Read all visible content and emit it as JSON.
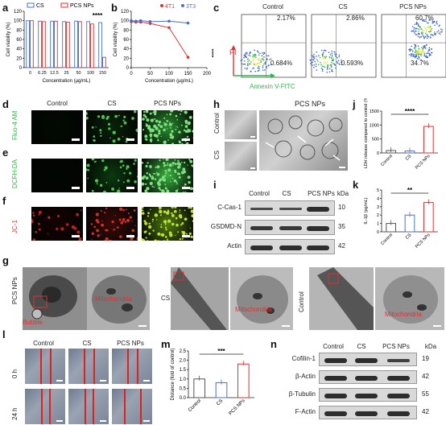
{
  "panels": {
    "a": "a",
    "b": "b",
    "c": "c",
    "d": "d",
    "e": "e",
    "f": "f",
    "g": "g",
    "h": "h",
    "i": "i",
    "j": "j",
    "k": "k",
    "l": "l",
    "m": "m",
    "n": "n"
  },
  "colors": {
    "cs": "#4a6fd1",
    "pcs": "#e03030",
    "green": "#2db84b",
    "red_text": "#e03030"
  },
  "chart_data": [
    {
      "id": "a",
      "type": "bar",
      "categories": [
        "0",
        "6.25",
        "12.5",
        "25",
        "50",
        "100",
        "150"
      ],
      "series": [
        {
          "name": "CS",
          "values": [
            100,
            99,
            99,
            98,
            99,
            98,
            96
          ]
        },
        {
          "name": "PCS NPs",
          "values": [
            100,
            98,
            99,
            97,
            98,
            93,
            22
          ]
        }
      ],
      "xlabel": "Concentration (μg/mL)",
      "ylabel": "Cell viability (%)",
      "ylim": [
        0,
        120
      ],
      "yticks": [
        "0",
        "20",
        "40",
        "60",
        "80",
        "100",
        "120"
      ],
      "annotation": "****"
    },
    {
      "id": "b",
      "type": "line",
      "x": [
        0,
        12.5,
        25,
        50,
        100,
        150
      ],
      "series": [
        {
          "name": "4T1",
          "values": [
            98,
            97,
            97,
            94,
            85,
            22
          ]
        },
        {
          "name": "3T3",
          "values": [
            100,
            99,
            100,
            98,
            99,
            95
          ]
        }
      ],
      "xlabel": "Concentration (μg/mL)",
      "ylabel": "Cell viability (%)",
      "xlim": [
        0,
        200
      ],
      "ylim": [
        0,
        120
      ],
      "xticks": [
        "0",
        "50",
        "100",
        "150",
        "200"
      ],
      "yticks": [
        "0",
        "20",
        "40",
        "60",
        "80",
        "100",
        "120"
      ],
      "annotation": "****"
    },
    {
      "id": "j",
      "type": "bar",
      "categories": [
        "Control",
        "CS",
        "PCS NPs"
      ],
      "values": [
        85,
        70,
        950
      ],
      "ylabel": "LDH release compared to control (%)",
      "ylim": [
        0,
        1500
      ],
      "yticks": [
        "0",
        "500",
        "1000",
        "1500"
      ],
      "annotation": "****"
    },
    {
      "id": "k",
      "type": "bar",
      "categories": [
        "Control",
        "CS",
        "PCS NPs"
      ],
      "values": [
        1.0,
        2.0,
        3.5
      ],
      "ylabel": "IL-1β (pg/mL)",
      "ylim": [
        0,
        5
      ],
      "yticks": [
        "0",
        "1",
        "2",
        "3",
        "4",
        "5"
      ],
      "annotation": "**"
    },
    {
      "id": "m",
      "type": "bar",
      "categories": [
        "Control",
        "CS",
        "PCS NPs"
      ],
      "values": [
        1.0,
        0.8,
        1.8
      ],
      "ylabel": "Distance (fold of control)",
      "ylim": [
        0,
        2.5
      ],
      "yticks": [
        "0.0",
        "0.5",
        "1.0",
        "1.5",
        "2.0",
        "2.5"
      ],
      "annotation": "***"
    }
  ],
  "flow": {
    "groups": [
      "Control",
      "CS",
      "PCS NPs"
    ],
    "q2": [
      "2.17%",
      "2.86%",
      "60.7%"
    ],
    "q4": [
      "0.684%",
      "0.593%",
      "34.7%"
    ],
    "yaxis": "PI",
    "xaxis": "Annexin V-FITC"
  },
  "fluor": {
    "cols": [
      "Control",
      "CS",
      "PCS NPs"
    ],
    "rows": [
      "Fluo-4 AM",
      "DCFH-DA",
      "JC-1"
    ]
  },
  "panel_g": {
    "label_pcs": "PCS NPs",
    "label_cs": "CS",
    "label_control": "Control",
    "mito": "Mitochondria",
    "bubble": "Bubble"
  },
  "panel_h": {
    "title": "PCS NPs",
    "row1": "Control",
    "row2": "CS"
  },
  "panel_i": {
    "cols": [
      "Control",
      "CS",
      "PCS NPs"
    ],
    "unit": "kDa",
    "rows": [
      {
        "name": "C-Cas-1",
        "kda": "10"
      },
      {
        "name": "GSDMD-N",
        "kda": "35"
      },
      {
        "name": "Actin",
        "kda": "42"
      }
    ]
  },
  "panel_l": {
    "cols": [
      "Control",
      "CS",
      "PCS NPs"
    ],
    "rows": [
      "0 h",
      "24 h"
    ]
  },
  "panel_n": {
    "cols": [
      "Control",
      "CS",
      "PCS NPs"
    ],
    "unit": "kDa",
    "rows": [
      {
        "name": "Cofilin-1",
        "kda": "19"
      },
      {
        "name": "β-Actin",
        "kda": "42"
      },
      {
        "name": "β-Tubulin",
        "kda": "55"
      },
      {
        "name": "F-Actin",
        "kda": "42"
      }
    ]
  }
}
